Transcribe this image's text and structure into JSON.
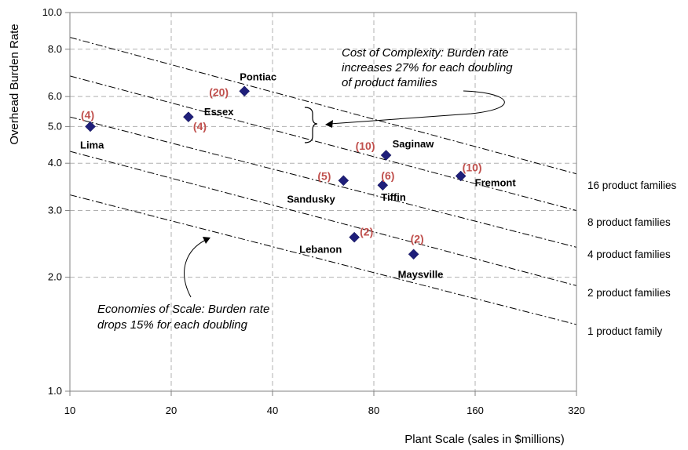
{
  "chart_data": {
    "type": "scatter",
    "xlabel": "Plant Scale (sales in $millions)",
    "ylabel": "Overhead Burden Rate",
    "x_scale": "log2",
    "y_scale": "log10",
    "xlim": [
      10,
      320
    ],
    "ylim": [
      1.0,
      10.0
    ],
    "x_ticks": [
      10,
      20,
      40,
      80,
      160,
      320
    ],
    "x_tick_labels": [
      "10",
      "20",
      "40",
      "80",
      "160",
      "320"
    ],
    "y_ticks": [
      1,
      2,
      3,
      4,
      5,
      6,
      8,
      10
    ],
    "y_tick_labels": [
      "1.0",
      "2.0",
      "3.0",
      "4.0",
      "5.0",
      "6.0",
      "8.0",
      "10.0"
    ],
    "grid": true,
    "points": [
      {
        "name": "Lima",
        "x": 11.5,
        "y": 5.0,
        "product_families": "(4)"
      },
      {
        "name": "Essex",
        "x": 22.5,
        "y": 5.3,
        "product_families": "(4)"
      },
      {
        "name": "Pontiac",
        "x": 33,
        "y": 6.2,
        "product_families": "(20)"
      },
      {
        "name": "Sandusky",
        "x": 65,
        "y": 3.6,
        "product_families": "(5)"
      },
      {
        "name": "Lebanon",
        "x": 70,
        "y": 2.55,
        "product_families": "(2)"
      },
      {
        "name": "Tiffin",
        "x": 85,
        "y": 3.5,
        "product_families": "(6)"
      },
      {
        "name": "Saginaw",
        "x": 87,
        "y": 4.2,
        "product_families": "(10)"
      },
      {
        "name": "Maysville",
        "x": 105,
        "y": 2.3,
        "product_families": "(2)"
      },
      {
        "name": "Fremont",
        "x": 145,
        "y": 3.7,
        "product_families": "(10)"
      }
    ],
    "reference_lines": [
      {
        "label": "1 product family",
        "y_at_x10": 3.3,
        "y_at_x320": 1.5
      },
      {
        "label": "2 product families",
        "y_at_x10": 4.3,
        "y_at_x320": 1.9
      },
      {
        "label": "4 product families",
        "y_at_x10": 5.3,
        "y_at_x320": 2.4
      },
      {
        "label": "8 product families",
        "y_at_x10": 6.8,
        "y_at_x320": 3.0
      },
      {
        "label": "16 product families",
        "y_at_x10": 8.6,
        "y_at_x320": 3.75
      }
    ],
    "annotations": {
      "complexity": [
        "Cost of Complexity: Burden rate",
        "increases 27% for each doubling",
        "of product families"
      ],
      "scale": [
        "Economies of Scale: Burden rate",
        "drops 15% for each doubling"
      ]
    },
    "colors": {
      "marker": "#1f1f7a",
      "count_label": "#c0504d",
      "grid": "#b0b0b0",
      "ref_line": "#000000"
    }
  }
}
